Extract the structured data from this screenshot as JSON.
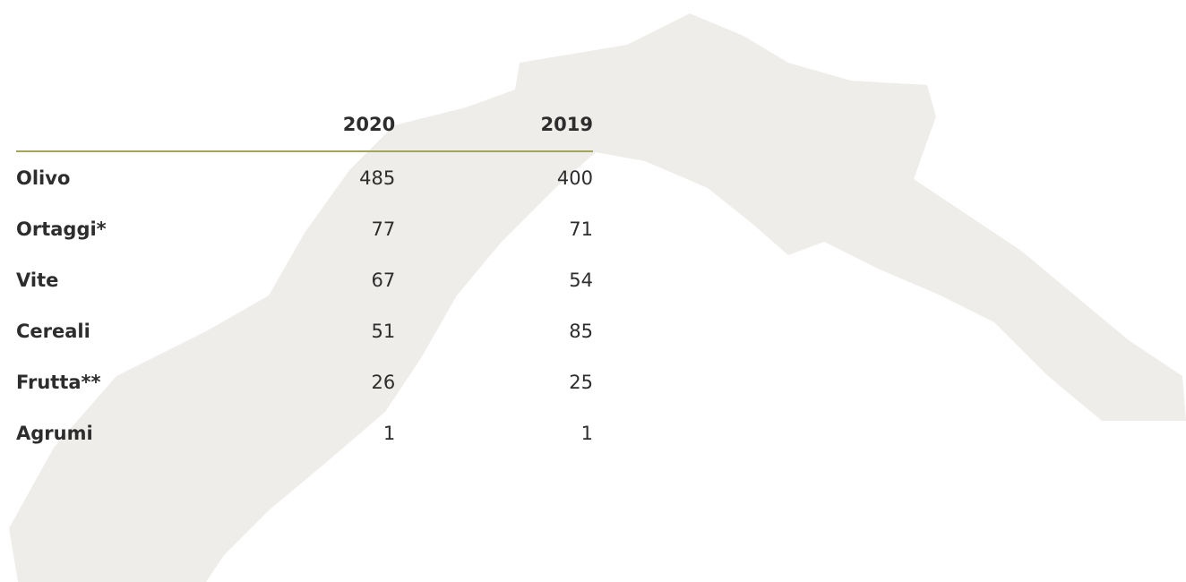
{
  "table": {
    "columns": [
      "2020",
      "2019"
    ],
    "rows": [
      {
        "label": "Olivo",
        "values": [
          "485",
          "400"
        ]
      },
      {
        "label": "Ortaggi*",
        "values": [
          "77",
          "71"
        ]
      },
      {
        "label": "Vite",
        "values": [
          "67",
          "54"
        ]
      },
      {
        "label": "Cereali",
        "values": [
          "51",
          "85"
        ]
      },
      {
        "label": "Frutta**",
        "values": [
          "26",
          "25"
        ]
      },
      {
        "label": "Agrumi",
        "values": [
          "1",
          "1"
        ]
      }
    ]
  }
}
